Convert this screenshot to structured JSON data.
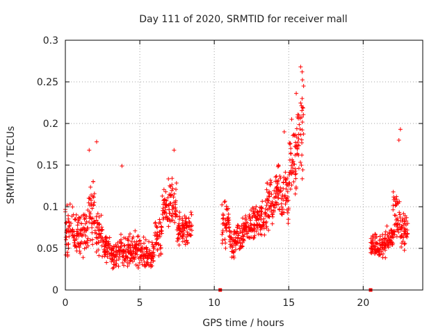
{
  "chart_data": {
    "type": "scatter",
    "title": "Day 111 of 2020, SRMTID for receiver mall",
    "xlabel": "GPS time / hours",
    "ylabel": "SRMTID / TECUs",
    "xlim": [
      0,
      24
    ],
    "ylim": [
      0,
      0.3
    ],
    "xticks": [
      0,
      5,
      10,
      15,
      20
    ],
    "xtick_labels": [
      "0",
      "5",
      "10",
      "15",
      "20"
    ],
    "yticks": [
      0,
      0.05,
      0.1,
      0.15,
      0.2,
      0.25,
      0.3
    ],
    "ytick_labels": [
      "0",
      "0.05",
      "0.1",
      "0.15",
      "0.2",
      "0.25",
      "0.3"
    ],
    "grid": true,
    "marker": "plus",
    "color": "#ff0000",
    "gap_markers": [
      10.4,
      20.5
    ],
    "series": [
      {
        "name": "SRMTID",
        "segments": [
          {
            "x0": 0.0,
            "x1": 0.5,
            "ymin": 0.03,
            "ymax": 0.11
          },
          {
            "x0": 0.5,
            "x1": 1.0,
            "ymin": 0.03,
            "ymax": 0.1
          },
          {
            "x0": 1.0,
            "x1": 1.5,
            "ymin": 0.03,
            "ymax": 0.11
          },
          {
            "x0": 1.5,
            "x1": 2.0,
            "ymin": 0.03,
            "ymax": 0.15
          },
          {
            "x0": 2.0,
            "x1": 2.5,
            "ymin": 0.03,
            "ymax": 0.1
          },
          {
            "x0": 2.5,
            "x1": 3.0,
            "ymin": 0.03,
            "ymax": 0.07
          },
          {
            "x0": 3.0,
            "x1": 3.5,
            "ymin": 0.02,
            "ymax": 0.06
          },
          {
            "x0": 3.5,
            "x1": 4.0,
            "ymin": 0.02,
            "ymax": 0.07
          },
          {
            "x0": 4.0,
            "x1": 4.5,
            "ymin": 0.02,
            "ymax": 0.07
          },
          {
            "x0": 4.5,
            "x1": 5.0,
            "ymin": 0.02,
            "ymax": 0.08
          },
          {
            "x0": 5.0,
            "x1": 5.5,
            "ymin": 0.02,
            "ymax": 0.07
          },
          {
            "x0": 5.5,
            "x1": 6.0,
            "ymin": 0.01,
            "ymax": 0.07
          },
          {
            "x0": 6.0,
            "x1": 6.5,
            "ymin": 0.03,
            "ymax": 0.09
          },
          {
            "x0": 6.5,
            "x1": 7.0,
            "ymin": 0.06,
            "ymax": 0.14
          },
          {
            "x0": 7.0,
            "x1": 7.5,
            "ymin": 0.06,
            "ymax": 0.15
          },
          {
            "x0": 7.5,
            "x1": 8.0,
            "ymin": 0.04,
            "ymax": 0.1
          },
          {
            "x0": 8.0,
            "x1": 8.5,
            "ymin": 0.04,
            "ymax": 0.1
          },
          {
            "x0": 10.5,
            "x1": 11.0,
            "ymin": 0.04,
            "ymax": 0.12
          },
          {
            "x0": 11.0,
            "x1": 11.5,
            "ymin": 0.03,
            "ymax": 0.08
          },
          {
            "x0": 11.5,
            "x1": 12.0,
            "ymin": 0.04,
            "ymax": 0.09
          },
          {
            "x0": 12.0,
            "x1": 12.5,
            "ymin": 0.05,
            "ymax": 0.1
          },
          {
            "x0": 12.5,
            "x1": 13.0,
            "ymin": 0.05,
            "ymax": 0.11
          },
          {
            "x0": 13.0,
            "x1": 13.5,
            "ymin": 0.05,
            "ymax": 0.12
          },
          {
            "x0": 13.5,
            "x1": 14.0,
            "ymin": 0.06,
            "ymax": 0.15
          },
          {
            "x0": 14.0,
            "x1": 14.5,
            "ymin": 0.08,
            "ymax": 0.16
          },
          {
            "x0": 14.5,
            "x1": 15.0,
            "ymin": 0.06,
            "ymax": 0.15
          },
          {
            "x0": 15.0,
            "x1": 15.5,
            "ymin": 0.08,
            "ymax": 0.21
          },
          {
            "x0": 15.5,
            "x1": 16.0,
            "ymin": 0.1,
            "ymax": 0.26
          },
          {
            "x0": 20.5,
            "x1": 21.0,
            "ymin": 0.03,
            "ymax": 0.07
          },
          {
            "x0": 21.0,
            "x1": 21.5,
            "ymin": 0.03,
            "ymax": 0.07
          },
          {
            "x0": 21.5,
            "x1": 22.0,
            "ymin": 0.04,
            "ymax": 0.08
          },
          {
            "x0": 22.0,
            "x1": 22.5,
            "ymin": 0.04,
            "ymax": 0.14
          },
          {
            "x0": 22.5,
            "x1": 23.0,
            "ymin": 0.04,
            "ymax": 0.1
          }
        ],
        "notable_points": [
          {
            "x": 1.6,
            "y": 0.168
          },
          {
            "x": 2.1,
            "y": 0.178
          },
          {
            "x": 3.8,
            "y": 0.149
          },
          {
            "x": 7.3,
            "y": 0.168
          },
          {
            "x": 15.8,
            "y": 0.268
          },
          {
            "x": 15.9,
            "y": 0.262
          },
          {
            "x": 16.0,
            "y": 0.245
          },
          {
            "x": 15.9,
            "y": 0.23
          },
          {
            "x": 22.5,
            "y": 0.193
          },
          {
            "x": 22.4,
            "y": 0.18
          },
          {
            "x": 14.7,
            "y": 0.19
          },
          {
            "x": 15.2,
            "y": 0.205
          }
        ]
      }
    ]
  }
}
